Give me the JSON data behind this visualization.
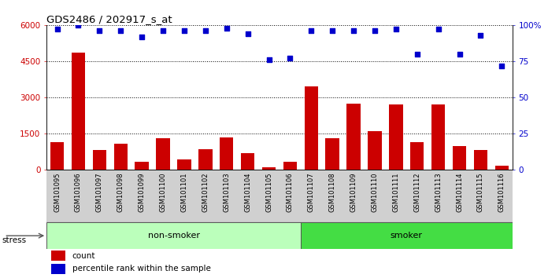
{
  "title": "GDS2486 / 202917_s_at",
  "categories": [
    "GSM101095",
    "GSM101096",
    "GSM101097",
    "GSM101098",
    "GSM101099",
    "GSM101100",
    "GSM101101",
    "GSM101102",
    "GSM101103",
    "GSM101104",
    "GSM101105",
    "GSM101106",
    "GSM101107",
    "GSM101108",
    "GSM101109",
    "GSM101110",
    "GSM101111",
    "GSM101112",
    "GSM101113",
    "GSM101114",
    "GSM101115",
    "GSM101116"
  ],
  "counts": [
    1150,
    4850,
    820,
    1080,
    320,
    1320,
    430,
    870,
    1360,
    680,
    110,
    320,
    3450,
    1300,
    2750,
    1600,
    2700,
    1150,
    2700,
    1000,
    820,
    170
  ],
  "percentile": [
    97,
    100,
    96,
    96,
    92,
    96,
    96,
    96,
    98,
    94,
    76,
    77,
    96,
    96,
    96,
    96,
    97,
    80,
    97,
    80,
    93,
    72
  ],
  "bar_color": "#cc0000",
  "dot_color": "#0000cc",
  "non_smoker_color": "#bbffbb",
  "smoker_color": "#44dd44",
  "non_smoker_count": 12,
  "smoker_count": 10,
  "yticks_left": [
    0,
    1500,
    3000,
    4500,
    6000
  ],
  "yticks_right": [
    0,
    25,
    50,
    75,
    100
  ],
  "ylim_left": [
    0,
    6000
  ],
  "ylim_right": [
    0,
    100
  ],
  "stress_label": "stress",
  "non_smoker_label": "non-smoker",
  "smoker_label": "smoker",
  "legend_count": "count",
  "legend_pct": "percentile rank within the sample",
  "plot_bg": "#ffffff",
  "xticklabel_bg": "#d8d8d8",
  "fig_bg": "#ffffff"
}
